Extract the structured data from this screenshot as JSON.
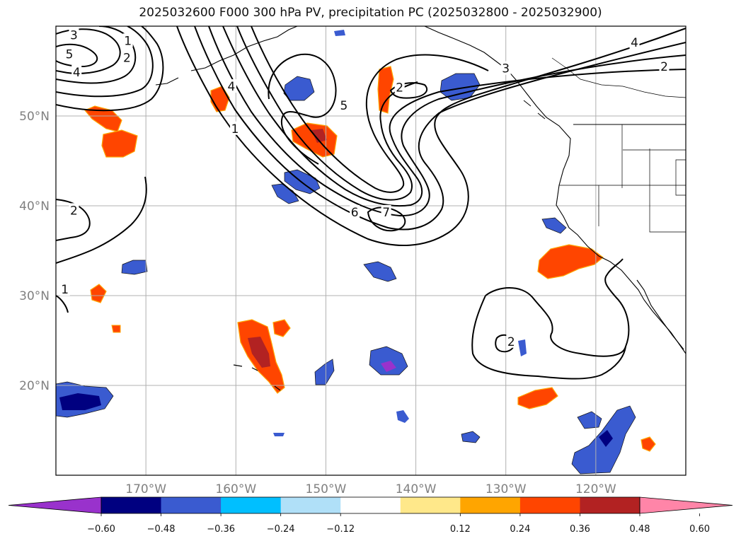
{
  "title": "2025032600 F000 300 hPa PV, precipitation PC (2025032800 - 2025032900)",
  "map": {
    "lon_range": [
      -180,
      -110
    ],
    "lat_range": [
      10,
      60
    ],
    "lon_ticks": [
      {
        "value": -170,
        "label": "170°W"
      },
      {
        "value": -160,
        "label": "160°W"
      },
      {
        "value": -150,
        "label": "150°W"
      },
      {
        "value": -140,
        "label": "140°W"
      },
      {
        "value": -130,
        "label": "130°W"
      },
      {
        "value": -120,
        "label": "120°W"
      }
    ],
    "lat_ticks": [
      {
        "value": 20,
        "label": "20°N"
      },
      {
        "value": 30,
        "label": "30°N"
      },
      {
        "value": 40,
        "label": "40°N"
      },
      {
        "value": 50,
        "label": "50°N"
      }
    ],
    "grid": true
  },
  "contour_labels": [
    {
      "text": "3",
      "lon": -178,
      "lat": 59
    },
    {
      "text": "1",
      "lon": -172,
      "lat": 58.4
    },
    {
      "text": "5",
      "lon": -178.5,
      "lat": 56.9
    },
    {
      "text": "2",
      "lon": -172.1,
      "lat": 56.5
    },
    {
      "text": "4",
      "lon": -177.7,
      "lat": 54.9
    },
    {
      "text": "4",
      "lon": -160.5,
      "lat": 53.3
    },
    {
      "text": "1",
      "lon": -160.1,
      "lat": 48.6
    },
    {
      "text": "5",
      "lon": -148,
      "lat": 51.2
    },
    {
      "text": "2",
      "lon": -141.8,
      "lat": 53.2
    },
    {
      "text": "3",
      "lon": -130,
      "lat": 55.3
    },
    {
      "text": "4",
      "lon": -115.7,
      "lat": 58.2
    },
    {
      "text": "2",
      "lon": -112.4,
      "lat": 55.5
    },
    {
      "text": "2",
      "lon": -178,
      "lat": 39.5
    },
    {
      "text": "6",
      "lon": -146.8,
      "lat": 39.3
    },
    {
      "text": "7",
      "lon": -143.3,
      "lat": 39.3
    },
    {
      "text": "1",
      "lon": -179,
      "lat": 30.7
    },
    {
      "text": "2",
      "lon": -129.4,
      "lat": 24.9
    }
  ],
  "colorbar": {
    "ticks": [
      "−0.60",
      "−0.48",
      "−0.36",
      "−0.24",
      "−0.12",
      "0.12",
      "0.24",
      "0.36",
      "0.48",
      "0.60"
    ],
    "colors": [
      "#9932cc",
      "#000080",
      "#3a5bd0",
      "#00bfff",
      "#b0e0f8",
      "#ffffff",
      "#ffe88a",
      "#ffa500",
      "#ff4500",
      "#b22222",
      "#ff85a8"
    ]
  }
}
